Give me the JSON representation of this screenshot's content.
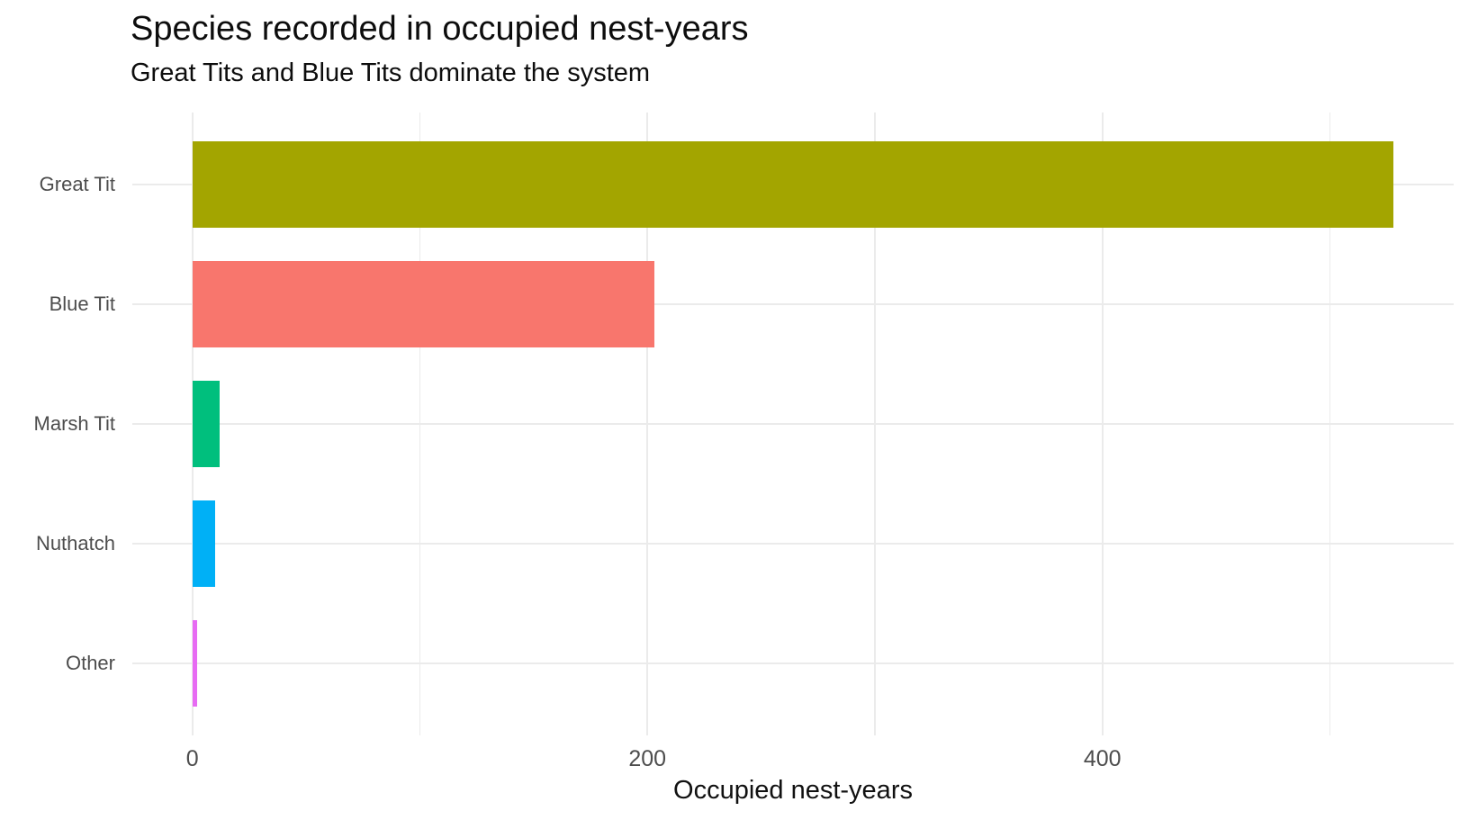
{
  "chart_data": {
    "type": "bar",
    "orientation": "horizontal",
    "title": "Species recorded in occupied nest-years",
    "subtitle": "Great Tits and Blue Tits dominate the system",
    "xlabel": "Occupied nest-years",
    "ylabel": "",
    "categories": [
      "Great Tit",
      "Blue Tit",
      "Marsh Tit",
      "Nuthatch",
      "Other"
    ],
    "values": [
      528,
      203,
      12,
      10,
      2
    ],
    "bar_colors": [
      "#A3A500",
      "#F8766D",
      "#00BF7D",
      "#00B0F6",
      "#E76BF3"
    ],
    "x_major_ticks": [
      0,
      200,
      400
    ],
    "x_minor_ticks": [
      100,
      300,
      500
    ],
    "xlim": [
      0,
      554
    ],
    "grid": true,
    "legend": false,
    "background_color": "#FFFFFF",
    "grid_color": "#EBEBEB",
    "axis_text_color": "#4D4D4D",
    "title_color": "#0D0D0D"
  }
}
